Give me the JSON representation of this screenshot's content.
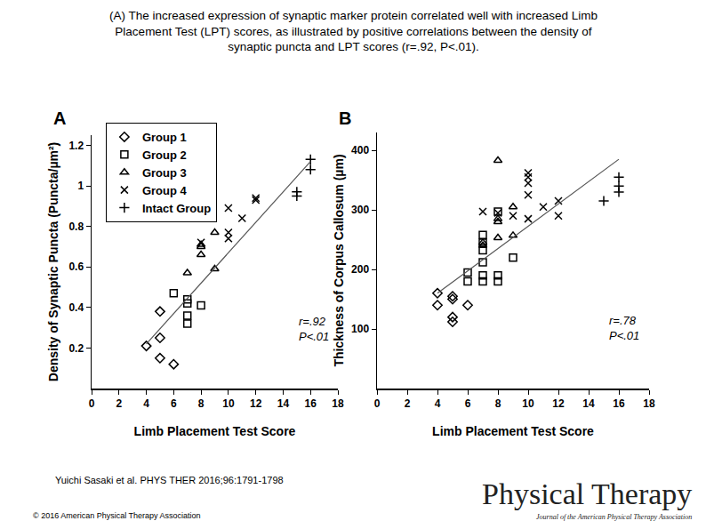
{
  "header": {
    "title": [
      "(A) The increased expression of synaptic marker protein correlated well with increased Limb",
      "Placement Test (LPT) scores, as illustrated by positive correlations between the density of",
      "synaptic puncta and LPT scores (r=.92, P<.01)."
    ]
  },
  "footer": {
    "citation": "Yuichi Sasaki et al. PHYS THER 2016;96:1791-1798",
    "copyright": "© 2016 American Physical Therapy Association",
    "logo": {
      "title": "Physical Therapy",
      "subtitle": "Journal of the American Physical Therapy Association"
    }
  },
  "chart_data": [
    {
      "label": "A",
      "type": "scatter",
      "xlabel": "Limb Placement Test Score",
      "ylabel": "Density of Synaptic Puncta (Puncta/µm²)",
      "xlim": [
        0,
        18
      ],
      "xticks": [
        0,
        2,
        4,
        6,
        8,
        10,
        12,
        14,
        16,
        18
      ],
      "ylim": [
        0,
        1.25
      ],
      "yticks": [
        0.2,
        0.4,
        0.6,
        0.8,
        1,
        1.2
      ],
      "grid": false,
      "legend": "upper left",
      "annotations": [
        "r=.92",
        "P<.01"
      ],
      "series": [
        {
          "name": "Group 1",
          "marker": "diamond-open",
          "color": "#000000",
          "x": [
            4,
            5,
            5,
            5,
            6
          ],
          "values": [
            0.21,
            0.38,
            0.25,
            0.15,
            0.12
          ]
        },
        {
          "name": "Group 2",
          "marker": "square-open",
          "color": "#000000",
          "x": [
            6,
            7,
            7,
            7,
            7,
            8
          ],
          "values": [
            0.47,
            0.44,
            0.42,
            0.36,
            0.32,
            0.41
          ]
        },
        {
          "name": "Group 3",
          "marker": "triangle-up-open",
          "color": "#000000",
          "x": [
            7,
            8,
            8,
            8,
            9,
            9
          ],
          "values": [
            0.57,
            0.71,
            0.7,
            0.66,
            0.77,
            0.59
          ]
        },
        {
          "name": "Group 4",
          "marker": "x-thin-open",
          "color": "#000000",
          "x": [
            8,
            10,
            10,
            10,
            11,
            12,
            12
          ],
          "values": [
            0.72,
            0.89,
            0.77,
            0.74,
            0.84,
            0.94,
            0.93
          ]
        },
        {
          "name": "Intact Group",
          "marker": "cross-thin-open",
          "color": "#000000",
          "x": [
            16,
            16,
            15,
            15
          ],
          "values": [
            1.13,
            1.08,
            0.97,
            0.95
          ]
        },
        {
          "type": "line",
          "color": "#555555",
          "x": [
            4,
            16
          ],
          "values": [
            0.22,
            1.12
          ]
        }
      ]
    },
    {
      "label": "B",
      "type": "scatter",
      "xlabel": "Limb Placement Test Score",
      "ylabel": "Thickness of Corpus Callosum (µm)",
      "xlim": [
        0,
        18
      ],
      "xticks": [
        0,
        2,
        4,
        6,
        8,
        10,
        12,
        14,
        16,
        18
      ],
      "ylim": [
        0,
        430
      ],
      "yticks": [
        100,
        200,
        300,
        400
      ],
      "grid": false,
      "annotations": [
        "r=.78",
        "P<.01"
      ],
      "series": [
        {
          "name": "Group 1",
          "marker": "diamond-open",
          "color": "#000000",
          "x": [
            4,
            4,
            5,
            5,
            5,
            5,
            6
          ],
          "values": [
            160,
            140,
            155,
            150,
            120,
            112,
            140
          ]
        },
        {
          "name": "Group 2",
          "marker": "square-open",
          "color": "#000000",
          "x": [
            6,
            6,
            7,
            7,
            7,
            7,
            7,
            7,
            8,
            8,
            8,
            9
          ],
          "values": [
            195,
            180,
            258,
            245,
            232,
            212,
            190,
            180,
            297,
            190,
            180,
            220
          ]
        },
        {
          "name": "Group 3",
          "marker": "triangle-up-open",
          "color": "#000000",
          "x": [
            7,
            7,
            8,
            8,
            8,
            8,
            9,
            9
          ],
          "values": [
            245,
            240,
            383,
            285,
            280,
            253,
            305,
            257
          ]
        },
        {
          "name": "Group 4",
          "marker": "x-thin-open",
          "color": "#000000",
          "x": [
            7,
            8,
            9,
            10,
            10,
            10,
            10,
            10,
            11,
            12,
            12
          ],
          "values": [
            297,
            295,
            290,
            362,
            355,
            345,
            325,
            285,
            305,
            315,
            290
          ]
        },
        {
          "name": "Intact Group",
          "marker": "cross-thin-open",
          "color": "#000000",
          "x": [
            15,
            16,
            16,
            16
          ],
          "values": [
            315,
            355,
            340,
            330
          ]
        },
        {
          "type": "line",
          "color": "#555555",
          "x": [
            4,
            16
          ],
          "values": [
            160,
            385
          ]
        }
      ]
    }
  ]
}
